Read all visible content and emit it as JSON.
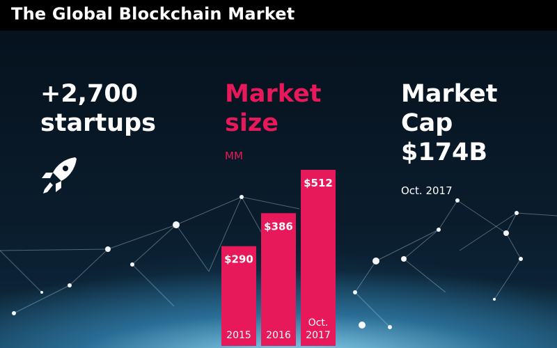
{
  "header": {
    "title": "The Global Blockchain Market"
  },
  "stats": {
    "startups_line1": "+2,700",
    "startups_line2": "startups",
    "market_size_line1": "Market",
    "market_size_line2": "size",
    "unit": "MM",
    "cap_line1": "Market",
    "cap_line2": "Cap",
    "cap_value": "$174B",
    "cap_date": "Oct. 2017"
  },
  "colors": {
    "accent": "#e8195a",
    "header_bg": "#000000",
    "text": "#ffffff"
  },
  "icons": {
    "startups": "rocket-icon"
  },
  "chart_data": {
    "type": "bar",
    "categories": [
      "2015",
      "2016",
      "Oct. 2017"
    ],
    "values": [
      290,
      386,
      512
    ],
    "value_labels": [
      "$290",
      "$386",
      "$512"
    ],
    "title": "Market size",
    "ylabel": "MM",
    "ylim": [
      0,
      512
    ],
    "color": "#e8195a"
  }
}
